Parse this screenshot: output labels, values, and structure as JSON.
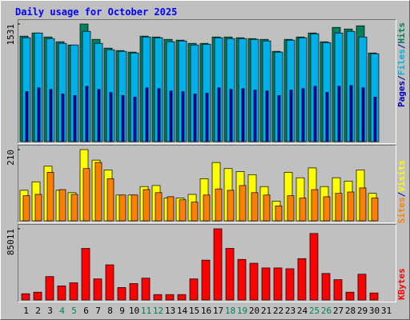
{
  "chart_data": [
    {
      "type": "bar",
      "title": "Daily usage for October 2025",
      "ylim": [
        0,
        1531
      ],
      "yticks": [
        1531
      ],
      "legend_separator": "/",
      "series": [
        {
          "name": "Hits",
          "color": "#00805C",
          "values": [
            1373,
            1414,
            1362,
            1300,
            1258,
            1531,
            1331,
            1217,
            1185,
            1165,
            1373,
            1362,
            1331,
            1321,
            1279,
            1279,
            1362,
            1362,
            1352,
            1341,
            1331,
            1175,
            1331,
            1362,
            1414,
            1300,
            1487,
            1466,
            1508,
            1154,
            0
          ]
        },
        {
          "name": "Files",
          "color": "#00B0E8",
          "values": [
            1352,
            1414,
            1341,
            1279,
            1258,
            1435,
            1279,
            1196,
            1175,
            1154,
            1362,
            1352,
            1300,
            1310,
            1258,
            1268,
            1352,
            1341,
            1341,
            1331,
            1310,
            1165,
            1321,
            1352,
            1404,
            1289,
            1414,
            1435,
            1362,
            1144,
            0
          ]
        },
        {
          "name": "Pages",
          "color": "#0000C0",
          "values": [
            650,
            700,
            680,
            620,
            600,
            720,
            680,
            640,
            600,
            580,
            700,
            690,
            660,
            650,
            620,
            630,
            700,
            680,
            690,
            670,
            660,
            600,
            670,
            690,
            720,
            640,
            720,
            730,
            700,
            580,
            0
          ]
        }
      ]
    },
    {
      "type": "bar",
      "ylim": [
        0,
        210
      ],
      "yticks": [
        210
      ],
      "legend_separator": "/",
      "series": [
        {
          "name": "Visits",
          "color": "#FFFF00",
          "values": [
            90,
            115,
            161,
            90,
            83,
            210,
            179,
            150,
            76,
            76,
            101,
            104,
            67,
            67,
            78,
            124,
            172,
            154,
            145,
            136,
            101,
            58,
            143,
            127,
            156,
            101,
            127,
            117,
            150,
            81,
            0
          ]
        },
        {
          "name": "Sites",
          "color": "#FF8000",
          "values": [
            74,
            78,
            143,
            92,
            78,
            154,
            172,
            124,
            76,
            76,
            92,
            83,
            71,
            62,
            55,
            76,
            94,
            90,
            104,
            83,
            76,
            44,
            74,
            67,
            92,
            71,
            81,
            85,
            97,
            67,
            0
          ]
        }
      ]
    },
    {
      "type": "bar",
      "ylim": [
        0,
        85011
      ],
      "yticks": [
        85011
      ],
      "categories": [
        "1",
        "2",
        "3",
        "4",
        "5",
        "6",
        "7",
        "8",
        "9",
        "10",
        "11",
        "12",
        "13",
        "14",
        "15",
        "16",
        "17",
        "18",
        "19",
        "20",
        "21",
        "22",
        "23",
        "24",
        "25",
        "26",
        "27",
        "28",
        "29",
        "30",
        "31"
      ],
      "category_colors": [
        "#000000",
        "#000000",
        "#000000",
        "#00805C",
        "#00805C",
        "#000000",
        "#000000",
        "#000000",
        "#000000",
        "#000000",
        "#00805C",
        "#00805C",
        "#000000",
        "#000000",
        "#000000",
        "#000000",
        "#000000",
        "#00805C",
        "#00805C",
        "#000000",
        "#000000",
        "#000000",
        "#000000",
        "#000000",
        "#00805C",
        "#00805C",
        "#000000",
        "#000000",
        "#000000",
        "#000000",
        "#000000"
      ],
      "series": [
        {
          "name": "KBytes",
          "color": "#FF0000",
          "values": [
            7475,
            9342,
            28000,
            16800,
            20500,
            61600,
            25200,
            42000,
            14900,
            19600,
            26100,
            6500,
            6500,
            6500,
            25200,
            47600,
            85011,
            61600,
            48500,
            43900,
            38300,
            38300,
            37300,
            49400,
            79400,
            31700,
            24300,
            9342,
            30800,
            8400,
            0
          ]
        }
      ]
    }
  ]
}
